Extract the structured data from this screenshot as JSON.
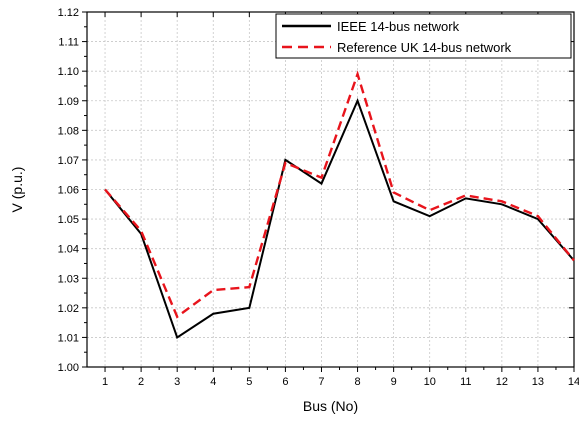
{
  "chart_data": {
    "type": "line",
    "title": "",
    "xlabel": "Bus (No)",
    "ylabel": "V (p.u.)",
    "x": [
      1,
      2,
      3,
      4,
      5,
      6,
      7,
      8,
      9,
      10,
      11,
      12,
      13,
      14
    ],
    "xlim": [
      0.5,
      14
    ],
    "ylim": [
      1.0,
      1.12
    ],
    "x_ticks": [
      "1",
      "2",
      "3",
      "4",
      "5",
      "6",
      "7",
      "8",
      "9",
      "10",
      "11",
      "12",
      "13",
      "14"
    ],
    "y_ticks": [
      "1.00",
      "1.01",
      "1.02",
      "1.03",
      "1.04",
      "1.05",
      "1.06",
      "1.07",
      "1.08",
      "1.09",
      "1.10",
      "1.11",
      "1.12"
    ],
    "grid": true,
    "legend_position": "top-right",
    "series": [
      {
        "name": "IEEE 14-bus network",
        "color": "#000000",
        "dash": "solid",
        "values": [
          1.06,
          1.045,
          1.01,
          1.018,
          1.02,
          1.07,
          1.062,
          1.09,
          1.056,
          1.051,
          1.057,
          1.055,
          1.05,
          1.036
        ]
      },
      {
        "name": "Reference UK 14-bus network",
        "color": "#e8141c",
        "dash": "dashed",
        "values": [
          1.06,
          1.046,
          1.017,
          1.026,
          1.027,
          1.069,
          1.064,
          1.099,
          1.059,
          1.053,
          1.058,
          1.056,
          1.051,
          1.036
        ]
      }
    ]
  }
}
